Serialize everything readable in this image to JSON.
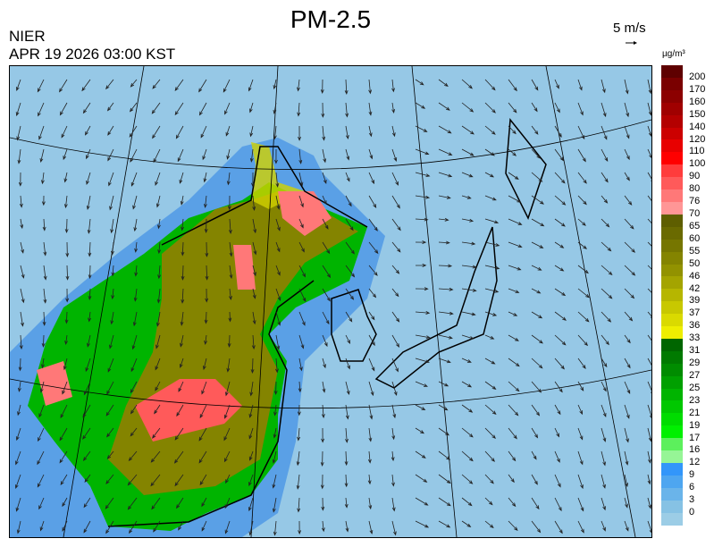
{
  "title": "PM-2.5",
  "organization": "NIER",
  "timestamp": "APR 19 2026 03:00 KST",
  "wind_reference": {
    "label": "5 m/s",
    "icon": "arrow-right-icon"
  },
  "legend": {
    "unit": "µg/m³",
    "labels": [
      "200",
      "170",
      "160",
      "150",
      "140",
      "120",
      "110",
      "100",
      "90",
      "80",
      "76",
      "70",
      "65",
      "60",
      "55",
      "50",
      "46",
      "42",
      "39",
      "37",
      "36",
      "33",
      "31",
      "29",
      "27",
      "25",
      "23",
      "21",
      "19",
      "17",
      "16",
      "12",
      "9",
      "6",
      "3",
      "0"
    ],
    "colors": [
      "#5e0000",
      "#7a0000",
      "#8c0000",
      "#a00000",
      "#b40000",
      "#cc0000",
      "#e80000",
      "#ff0000",
      "#ff3c3c",
      "#ff5a5a",
      "#ff7878",
      "#ff9696",
      "#5e5e00",
      "#6a6a00",
      "#767600",
      "#848400",
      "#929200",
      "#a4a400",
      "#b6b600",
      "#c8c800",
      "#dada00",
      "#eeee00",
      "#006600",
      "#007a00",
      "#008c00",
      "#00a000",
      "#00b400",
      "#00c800",
      "#00dc00",
      "#00f000",
      "#5cf05c",
      "#96f596",
      "#3296fa",
      "#4ea6f0",
      "#6ab4ea",
      "#86c2e4",
      "#9ccde6"
    ]
  },
  "map_colors": {
    "background": "#96c8e6",
    "coastal_blue": "#5aa0e6",
    "olive": "#848400",
    "yellow": "#d2d200",
    "green": "#00b400",
    "red": "#ff6464"
  }
}
